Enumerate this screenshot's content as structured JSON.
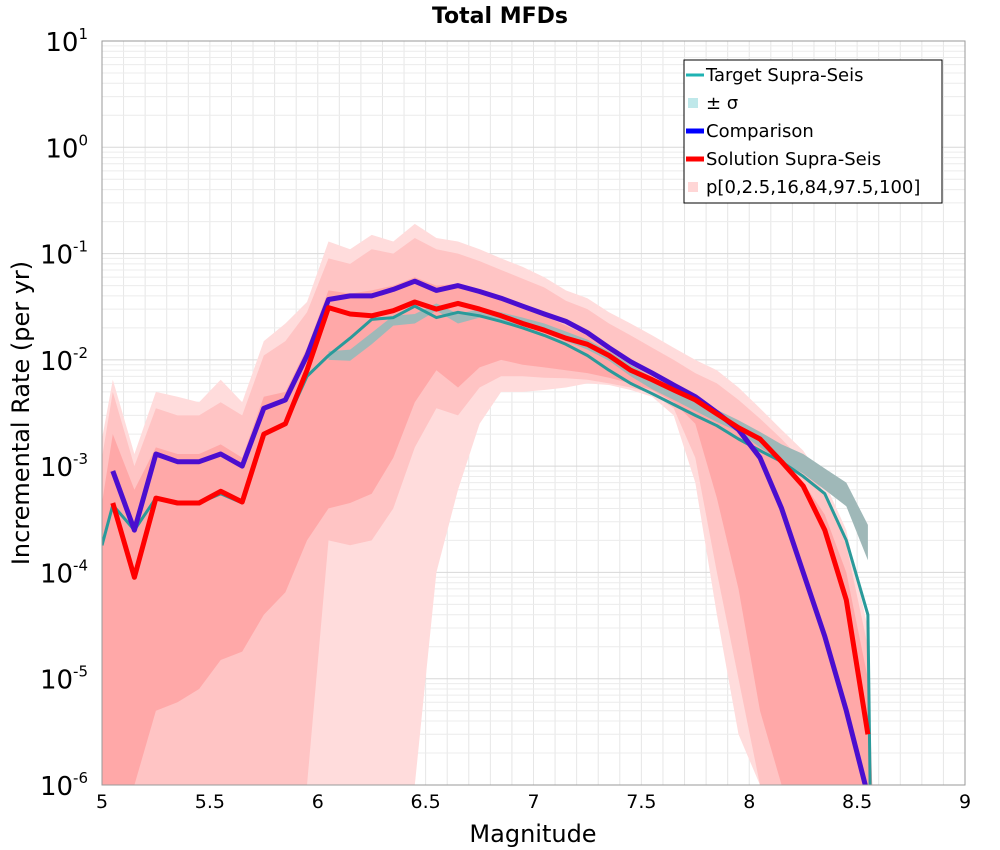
{
  "chart_data": {
    "type": "line",
    "title": "Total MFDs",
    "xlabel": "Magnitude",
    "ylabel": "Incremental Rate (per yr)",
    "xlim": [
      5,
      9
    ],
    "ylim": [
      1e-06,
      10
    ],
    "yscale": "log",
    "grid": true,
    "legend_position": "top-right",
    "x_ticks": [
      "5",
      "5.5",
      "6",
      "6.5",
      "7",
      "7.5",
      "8",
      "8.5",
      "9"
    ],
    "y_ticks": [
      {
        "base": "10",
        "exp": "-6",
        "value": 1e-06
      },
      {
        "base": "10",
        "exp": "-5",
        "value": 1e-05
      },
      {
        "base": "10",
        "exp": "-4",
        "value": 0.0001
      },
      {
        "base": "10",
        "exp": "-3",
        "value": 0.001
      },
      {
        "base": "10",
        "exp": "-2",
        "value": 0.01
      },
      {
        "base": "10",
        "exp": "-1",
        "value": 0.1
      },
      {
        "base": "10",
        "exp": "0",
        "value": 1
      },
      {
        "base": "10",
        "exp": "1",
        "value": 10
      }
    ],
    "legend": [
      {
        "label": "Target Supra-Seis",
        "color": "#1fb3b3",
        "kind": "line-thin"
      },
      {
        "label": "± σ",
        "color": "#bfe8ea",
        "kind": "square"
      },
      {
        "label": "Comparison",
        "color": "#0000ff",
        "kind": "line"
      },
      {
        "label": "Solution Supra-Seis",
        "color": "#ff0000",
        "kind": "line"
      },
      {
        "label": "p[0,2.5,16,84,97.5,100]",
        "color": "#ffd6d6",
        "kind": "square"
      }
    ],
    "x": [
      5.05,
      5.15,
      5.25,
      5.35,
      5.45,
      5.55,
      5.65,
      5.75,
      5.85,
      5.95,
      6.05,
      6.15,
      6.25,
      6.35,
      6.45,
      6.55,
      6.65,
      6.75,
      6.85,
      6.95,
      7.05,
      7.15,
      7.25,
      7.35,
      7.45,
      7.55,
      7.65,
      7.75,
      7.85,
      7.95,
      8.05,
      8.15,
      8.25,
      8.35,
      8.45,
      8.55
    ],
    "series": [
      {
        "name": "Target Supra-Seis",
        "color": "#2a9a9a",
        "x": [
          5.0,
          5.05,
          5.15,
          5.25,
          5.35,
          5.45,
          5.55,
          5.65,
          5.75,
          5.85,
          5.95,
          6.05,
          6.15,
          6.25,
          6.35,
          6.45,
          6.55,
          6.65,
          6.75,
          6.85,
          6.95,
          7.05,
          7.15,
          7.25,
          7.35,
          7.45,
          7.55,
          7.65,
          7.75,
          7.85,
          7.95,
          8.05,
          8.15,
          8.25,
          8.35,
          8.45,
          8.55,
          8.56
        ],
        "values": [
          0.00018,
          0.00043,
          0.00025,
          0.0005,
          0.00045,
          0.00045,
          0.00055,
          0.00045,
          0.002,
          0.0025,
          0.007,
          0.011,
          0.016,
          0.024,
          0.025,
          0.032,
          0.025,
          0.028,
          0.026,
          0.023,
          0.02,
          0.017,
          0.014,
          0.011,
          0.008,
          0.006,
          0.0048,
          0.0038,
          0.003,
          0.0024,
          0.0018,
          0.0014,
          0.0011,
          0.0008,
          0.00055,
          0.0002,
          4e-05,
          1e-06
        ]
      },
      {
        "name": "Comparison",
        "color": "#4b0ecf",
        "values": [
          0.0009,
          0.00025,
          0.0013,
          0.0011,
          0.0011,
          0.0013,
          0.001,
          0.0035,
          0.0042,
          0.011,
          0.037,
          0.04,
          0.04,
          0.046,
          0.055,
          0.045,
          0.05,
          0.044,
          0.038,
          0.032,
          0.027,
          0.023,
          0.018,
          0.013,
          0.0096,
          0.0075,
          0.0058,
          0.0045,
          0.0032,
          0.0022,
          0.0012,
          0.0004,
          0.0001,
          2.5e-05,
          5e-06,
          8e-07
        ]
      },
      {
        "name": "Solution Supra-Seis",
        "color": "#ff0000",
        "values": [
          0.00045,
          9e-05,
          0.0005,
          0.00045,
          0.00045,
          0.00058,
          0.00046,
          0.002,
          0.0025,
          0.008,
          0.031,
          0.027,
          0.026,
          0.029,
          0.035,
          0.03,
          0.034,
          0.03,
          0.026,
          0.022,
          0.019,
          0.016,
          0.014,
          0.011,
          0.008,
          0.0065,
          0.0052,
          0.0042,
          0.0031,
          0.0023,
          0.0018,
          0.0011,
          0.00065,
          0.00025,
          5.5e-05,
          3e-06
        ]
      }
    ],
    "bands": [
      {
        "name": "p0-100",
        "color": "#ffdcdc",
        "x": [
          5.0,
          5.05,
          5.15,
          5.25,
          5.35,
          5.45,
          5.55,
          5.65,
          5.75,
          5.85,
          5.95,
          6.05,
          6.15,
          6.25,
          6.35,
          6.45,
          6.55,
          6.65,
          6.75,
          6.85,
          6.95,
          7.05,
          7.15,
          7.25,
          7.35,
          7.45,
          7.55,
          7.65,
          7.75,
          7.85,
          7.95,
          8.05,
          8.15,
          8.25,
          8.35,
          8.45,
          8.55,
          8.57
        ],
        "upper": [
          0.0018,
          0.0065,
          0.0013,
          0.005,
          0.0045,
          0.004,
          0.0065,
          0.004,
          0.015,
          0.022,
          0.035,
          0.13,
          0.11,
          0.15,
          0.13,
          0.19,
          0.14,
          0.13,
          0.11,
          0.09,
          0.075,
          0.06,
          0.045,
          0.038,
          0.028,
          0.022,
          0.017,
          0.013,
          0.01,
          0.008,
          0.0055,
          0.0035,
          0.0022,
          0.0014,
          0.0007,
          0.00025,
          3e-05,
          1e-06
        ],
        "lower": [
          1e-06,
          1e-06,
          1e-06,
          1e-06,
          1e-06,
          1e-06,
          1e-06,
          1e-06,
          1e-06,
          1e-06,
          1e-06,
          1e-06,
          1e-06,
          1e-06,
          1e-06,
          1e-06,
          0.0001,
          0.0006,
          0.0025,
          0.005,
          0.005,
          0.0052,
          0.0055,
          0.006,
          0.0058,
          0.0052,
          0.0045,
          0.003,
          0.0007,
          4e-05,
          3e-06,
          1e-06,
          1e-06,
          1e-06,
          1e-06,
          1e-06,
          1e-06,
          1e-06
        ]
      },
      {
        "name": "p2.5-97.5",
        "color": "#ffc4c4",
        "x": [
          5.0,
          5.05,
          5.15,
          5.25,
          5.35,
          5.45,
          5.55,
          5.65,
          5.75,
          5.85,
          5.95,
          6.05,
          6.15,
          6.25,
          6.35,
          6.45,
          6.55,
          6.65,
          6.75,
          6.85,
          6.95,
          7.05,
          7.15,
          7.25,
          7.35,
          7.45,
          7.55,
          7.65,
          7.75,
          7.85,
          7.95,
          8.05,
          8.15,
          8.25,
          8.35,
          8.45,
          8.55,
          8.57
        ],
        "upper": [
          0.0012,
          0.005,
          0.001,
          0.0035,
          0.003,
          0.003,
          0.004,
          0.003,
          0.011,
          0.015,
          0.028,
          0.09,
          0.08,
          0.11,
          0.1,
          0.14,
          0.11,
          0.1,
          0.085,
          0.07,
          0.058,
          0.048,
          0.036,
          0.03,
          0.022,
          0.017,
          0.013,
          0.01,
          0.0075,
          0.006,
          0.0042,
          0.0028,
          0.0018,
          0.0011,
          0.00055,
          0.00018,
          2e-05,
          1e-06
        ],
        "lower": [
          1e-06,
          1e-06,
          1e-06,
          1e-06,
          1e-06,
          1e-06,
          1e-06,
          1e-06,
          1e-06,
          1e-06,
          1e-06,
          0.0002,
          0.00018,
          0.0002,
          0.0004,
          0.0015,
          0.0035,
          0.003,
          0.0055,
          0.007,
          0.007,
          0.0068,
          0.0067,
          0.0065,
          0.006,
          0.0055,
          0.0048,
          0.0035,
          0.0012,
          0.0001,
          1e-05,
          1e-06,
          1e-06,
          1e-06,
          1e-06,
          1e-06,
          1e-06,
          1e-06
        ]
      },
      {
        "name": "p16-84",
        "color": "#ffa8a8",
        "x": [
          5.0,
          5.05,
          5.15,
          5.25,
          5.35,
          5.45,
          5.55,
          5.65,
          5.75,
          5.85,
          5.95,
          6.05,
          6.15,
          6.25,
          6.35,
          6.45,
          6.55,
          6.65,
          6.75,
          6.85,
          6.95,
          7.05,
          7.15,
          7.25,
          7.35,
          7.45,
          7.55,
          7.65,
          7.75,
          7.85,
          7.95,
          8.05,
          8.15,
          8.25,
          8.35,
          8.45,
          8.55,
          8.57
        ],
        "upper": [
          0.00045,
          0.002,
          0.0006,
          0.0015,
          0.0013,
          0.0013,
          0.0016,
          0.0012,
          0.0045,
          0.005,
          0.013,
          0.045,
          0.042,
          0.045,
          0.05,
          0.06,
          0.05,
          0.052,
          0.045,
          0.038,
          0.031,
          0.026,
          0.021,
          0.017,
          0.0125,
          0.0095,
          0.0074,
          0.0057,
          0.0044,
          0.0033,
          0.0024,
          0.0017,
          0.0011,
          0.0007,
          0.00035,
          0.0001,
          1e-05,
          1e-06
        ],
        "lower": [
          1e-06,
          1e-06,
          1e-06,
          5e-06,
          6e-06,
          8e-06,
          1.5e-05,
          1.8e-05,
          4e-05,
          6.5e-05,
          0.0002,
          0.0004,
          0.00045,
          0.00055,
          0.0012,
          0.004,
          0.008,
          0.0055,
          0.0085,
          0.01,
          0.009,
          0.0085,
          0.008,
          0.0075,
          0.0068,
          0.006,
          0.0052,
          0.004,
          0.0025,
          0.0005,
          7e-05,
          5e-06,
          1e-06,
          1e-06,
          1e-06,
          1e-06,
          1e-06,
          1e-06
        ]
      },
      {
        "name": "± σ",
        "color": "#9fb8b8",
        "x": [
          6.05,
          6.15,
          6.25,
          6.35,
          6.45,
          6.55,
          6.65,
          6.75,
          6.85,
          6.95,
          7.05,
          7.15,
          7.25,
          7.35,
          7.45,
          7.55,
          7.65,
          7.75,
          7.85,
          7.95,
          8.05,
          8.15,
          8.25,
          8.35,
          8.45,
          8.55
        ],
        "upper": [
          0.012,
          0.0125,
          0.018,
          0.026,
          0.027,
          0.034,
          0.027,
          0.03,
          0.028,
          0.025,
          0.022,
          0.0185,
          0.0155,
          0.012,
          0.009,
          0.0068,
          0.0054,
          0.0043,
          0.0034,
          0.0027,
          0.0021,
          0.0016,
          0.0013,
          0.00095,
          0.0007,
          0.00028
        ],
        "lower": [
          0.01,
          0.0098,
          0.014,
          0.021,
          0.022,
          0.029,
          0.022,
          0.025,
          0.023,
          0.021,
          0.018,
          0.015,
          0.0125,
          0.0098,
          0.007,
          0.0053,
          0.0042,
          0.0033,
          0.0026,
          0.0021,
          0.0015,
          0.0011,
          0.00085,
          0.0006,
          0.00042,
          0.00013
        ]
      }
    ]
  }
}
